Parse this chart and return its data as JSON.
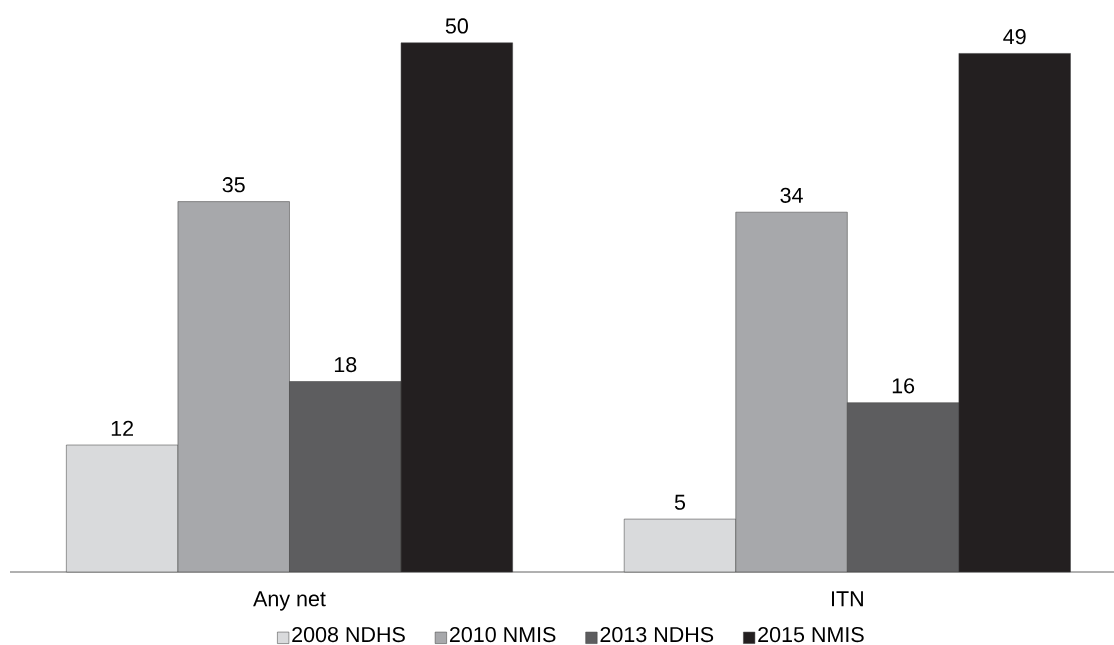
{
  "chart_data": {
    "type": "bar",
    "categories": [
      "Any net",
      "ITN"
    ],
    "series": [
      {
        "name": "2008 NDHS",
        "color": "#d9dadc",
        "values": [
          12,
          5
        ]
      },
      {
        "name": "2010 NMIS",
        "color": "#a7a8ab",
        "values": [
          35,
          34
        ]
      },
      {
        "name": "2013 NDHS",
        "color": "#5d5d5f",
        "values": [
          18,
          16
        ]
      },
      {
        "name": "2015 NMIS",
        "color": "#231f20",
        "values": [
          50,
          49
        ]
      }
    ],
    "data_labels": true,
    "legend": "bottom"
  }
}
